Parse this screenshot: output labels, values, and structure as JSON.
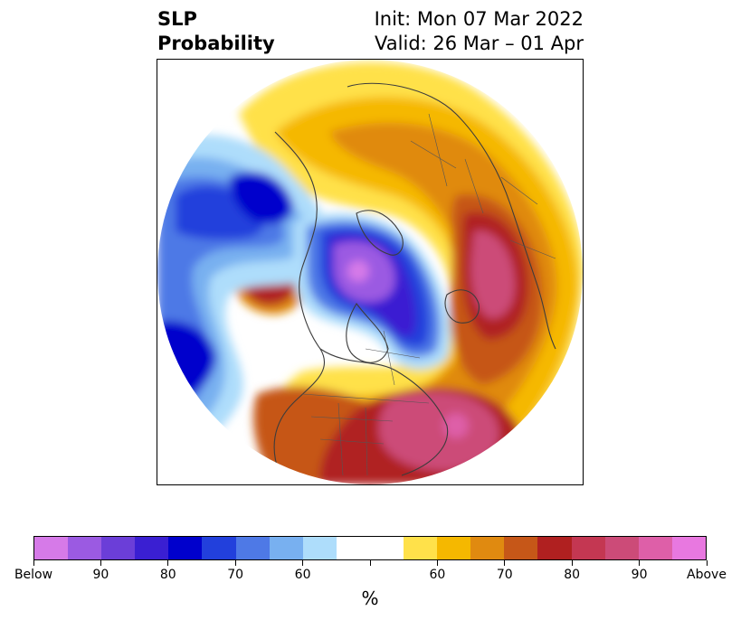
{
  "title": {
    "left_line1": "SLP",
    "left_line2": "Probability",
    "right_line1": "Init: Mon 07 Mar 2022",
    "right_line2": "Valid: 26 Mar – 01 Apr"
  },
  "colorbar": {
    "unit": "%",
    "colors": [
      "#d67ae8",
      "#9b5ae2",
      "#6b3ed8",
      "#3a1fd2",
      "#0000cc",
      "#2240dc",
      "#4e79e6",
      "#78b0f0",
      "#aeddfb",
      "#ffffff",
      "#ffffff",
      "#ffe14a",
      "#f5b800",
      "#e08a10",
      "#c65718",
      "#b02020",
      "#c43752",
      "#cc4b78",
      "#de5fa8",
      "#e878e0"
    ],
    "ticks": [
      {
        "label": "Below"
      },
      {
        "label": "90"
      },
      {
        "label": "80"
      },
      {
        "label": "70"
      },
      {
        "label": "60"
      },
      {
        "label": ""
      },
      {
        "label": "60"
      },
      {
        "label": "70"
      },
      {
        "label": "80"
      },
      {
        "label": "90"
      },
      {
        "label": "Above"
      }
    ]
  }
}
